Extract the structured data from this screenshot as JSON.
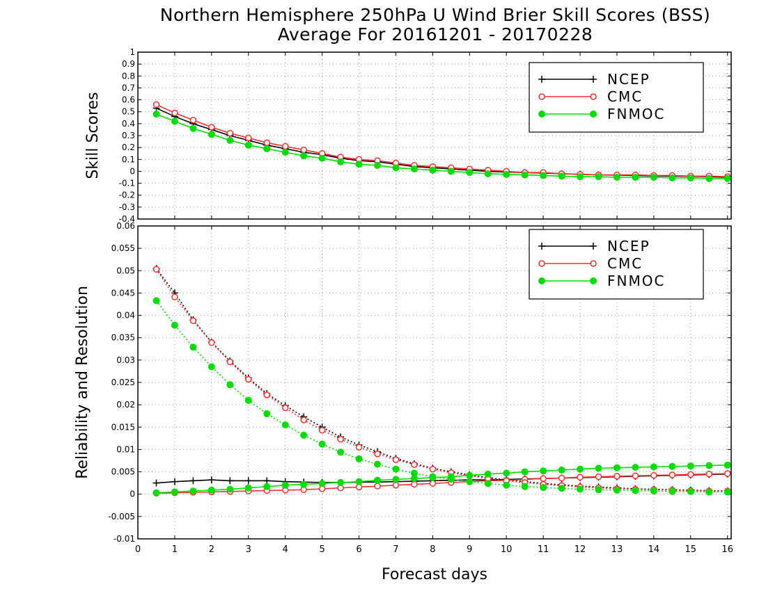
{
  "figure": {
    "title_line1": "Northern Hemisphere 250hPa U Wind Brier Skill Scores (BSS)",
    "title_line2": "Average For 20161201 - 20170228"
  },
  "chart_data": [
    {
      "id": "top",
      "type": "line",
      "ylabel": "Skill Scores",
      "xlabel": "",
      "xlim": [
        0,
        16.1
      ],
      "ylim": [
        -0.4,
        1
      ],
      "yticks": [
        -0.4,
        -0.3,
        -0.2,
        -0.1,
        0,
        0.1,
        0.2,
        0.3,
        0.4,
        0.5,
        0.6,
        0.7,
        0.8,
        0.9,
        1
      ],
      "ytick_labels": [
        "-0.4",
        "-0.3",
        "-0.2",
        "-0.1",
        "0",
        "0.1",
        "0.2",
        "0.3",
        "0.4",
        "0.5",
        "0.6",
        "0.7",
        "0.8",
        "0.9",
        "1"
      ],
      "grid": true,
      "legend": "top-right",
      "x": [
        0.5,
        1,
        1.5,
        2,
        2.5,
        3,
        3.5,
        4,
        4.5,
        5,
        5.5,
        6,
        6.5,
        7,
        7.5,
        8,
        8.5,
        9,
        9.5,
        10,
        10.5,
        11,
        11.5,
        12,
        12.5,
        13,
        13.5,
        14,
        14.5,
        15,
        15.5,
        16
      ],
      "series": [
        {
          "name": "NCEP",
          "color": "#000000",
          "marker": "plus",
          "style": "solid",
          "values": [
            0.53,
            0.46,
            0.4,
            0.35,
            0.3,
            0.26,
            0.22,
            0.19,
            0.16,
            0.14,
            0.11,
            0.09,
            0.08,
            0.06,
            0.04,
            0.03,
            0.02,
            0.01,
            0.0,
            -0.005,
            -0.01,
            -0.015,
            -0.02,
            -0.025,
            -0.03,
            -0.032,
            -0.035,
            -0.038,
            -0.04,
            -0.042,
            -0.045,
            -0.05
          ]
        },
        {
          "name": "CMC",
          "color": "#ff3030",
          "marker": "open-circle",
          "style": "solid",
          "values": [
            0.56,
            0.49,
            0.43,
            0.37,
            0.32,
            0.28,
            0.24,
            0.21,
            0.18,
            0.15,
            0.12,
            0.1,
            0.09,
            0.07,
            0.05,
            0.04,
            0.03,
            0.02,
            0.01,
            0.0,
            -0.01,
            -0.01,
            -0.02,
            -0.025,
            -0.03,
            -0.03,
            -0.03,
            -0.035,
            -0.035,
            -0.04,
            -0.04,
            -0.045
          ]
        },
        {
          "name": "FNMOC",
          "color": "#00dd00",
          "marker": "filled-circle",
          "style": "solid",
          "values": [
            0.48,
            0.42,
            0.36,
            0.31,
            0.26,
            0.22,
            0.19,
            0.16,
            0.13,
            0.11,
            0.08,
            0.06,
            0.05,
            0.03,
            0.02,
            0.01,
            0.0,
            -0.01,
            -0.02,
            -0.025,
            -0.03,
            -0.035,
            -0.04,
            -0.045,
            -0.045,
            -0.05,
            -0.05,
            -0.05,
            -0.055,
            -0.055,
            -0.06,
            -0.06
          ]
        }
      ]
    },
    {
      "id": "bottom",
      "type": "line",
      "ylabel": "Reliability and Resolution",
      "xlabel": "Forecast days",
      "xlim": [
        0,
        16.1
      ],
      "xticks": [
        0,
        1,
        2,
        3,
        4,
        5,
        6,
        7,
        8,
        9,
        10,
        11,
        12,
        13,
        14,
        15,
        16
      ],
      "xtick_labels": [
        "0",
        "1",
        "2",
        "3",
        "4",
        "5",
        "6",
        "7",
        "8",
        "9",
        "10",
        "11",
        "12",
        "13",
        "14",
        "15",
        "16"
      ],
      "ylim": [
        -0.01,
        0.06
      ],
      "yticks": [
        -0.01,
        -0.005,
        0,
        0.005,
        0.01,
        0.015,
        0.02,
        0.025,
        0.03,
        0.035,
        0.04,
        0.045,
        0.05,
        0.055,
        0.06
      ],
      "ytick_labels": [
        "-0.01",
        "-0.005",
        "0",
        "0.005",
        "0.01",
        "0.015",
        "0.02",
        "0.025",
        "0.03",
        "0.035",
        "0.04",
        "0.045",
        "0.05",
        "0.055",
        "0.06"
      ],
      "grid": true,
      "legend": "top-right",
      "x": [
        0.5,
        1,
        1.5,
        2,
        2.5,
        3,
        3.5,
        4,
        4.5,
        5,
        5.5,
        6,
        6.5,
        7,
        7.5,
        8,
        8.5,
        9,
        9.5,
        10,
        10.5,
        11,
        11.5,
        12,
        12.5,
        13,
        13.5,
        14,
        14.5,
        15,
        15.5,
        16
      ],
      "series": [
        {
          "name": "NCEP",
          "color": "#000000",
          "marker": "plus",
          "style": "solid",
          "values": [
            0.0025,
            0.0028,
            0.003,
            0.0032,
            0.003,
            0.003,
            0.003,
            0.0028,
            0.0027,
            0.0026,
            0.0026,
            0.0027,
            0.0027,
            0.0028,
            0.0029,
            0.003,
            0.0031,
            0.0032,
            0.0032,
            0.0033,
            0.0034,
            0.0035,
            0.0036,
            0.0037,
            0.0038,
            0.0039,
            0.004,
            0.0041,
            0.0042,
            0.0043,
            0.0044,
            0.0045
          ]
        },
        {
          "name": "NCEP",
          "color": "#000000",
          "marker": "plus",
          "style": "dotted",
          "values": [
            0.0505,
            0.045,
            0.039,
            0.034,
            0.0298,
            0.026,
            0.0225,
            0.0198,
            0.0173,
            0.015,
            0.0128,
            0.011,
            0.0095,
            0.008,
            0.0068,
            0.0058,
            0.005,
            0.0043,
            0.0037,
            0.0032,
            0.0028,
            0.0024,
            0.0021,
            0.0018,
            0.0016,
            0.0014,
            0.0012,
            0.0011,
            0.001,
            0.0009,
            0.0008,
            0.0007
          ]
        },
        {
          "name": "CMC",
          "color": "#ff3030",
          "marker": "open-circle",
          "style": "solid",
          "values": [
            0.0002,
            0.0003,
            0.0004,
            0.0005,
            0.0006,
            0.0007,
            0.0008,
            0.0009,
            0.001,
            0.0012,
            0.0014,
            0.0016,
            0.0018,
            0.002,
            0.0022,
            0.0024,
            0.0026,
            0.0028,
            0.003,
            0.0031,
            0.0033,
            0.0035,
            0.0036,
            0.0038,
            0.0039,
            0.004,
            0.0041,
            0.0042,
            0.0043,
            0.0044,
            0.0045,
            0.0046
          ]
        },
        {
          "name": "CMC",
          "color": "#ff3030",
          "marker": "open-circle",
          "style": "dotted",
          "values": [
            0.0503,
            0.0441,
            0.0388,
            0.0339,
            0.0296,
            0.0257,
            0.0222,
            0.0193,
            0.0166,
            0.0143,
            0.0123,
            0.0105,
            0.009,
            0.0077,
            0.0066,
            0.0056,
            0.0048,
            0.0041,
            0.0035,
            0.003,
            0.0026,
            0.0022,
            0.0019,
            0.0016,
            0.0014,
            0.0012,
            0.0011,
            0.001,
            0.0009,
            0.0008,
            0.0007,
            0.0007
          ]
        },
        {
          "name": "FNMOC",
          "color": "#00dd00",
          "marker": "filled-circle",
          "style": "solid",
          "values": [
            0.0003,
            0.0005,
            0.0007,
            0.0009,
            0.0011,
            0.0014,
            0.0017,
            0.002,
            0.0022,
            0.0024,
            0.0026,
            0.0028,
            0.0031,
            0.0033,
            0.0035,
            0.0037,
            0.0039,
            0.0042,
            0.0045,
            0.0047,
            0.005,
            0.0052,
            0.0054,
            0.0056,
            0.0058,
            0.0059,
            0.006,
            0.0061,
            0.0062,
            0.0063,
            0.0064,
            0.0065
          ]
        },
        {
          "name": "FNMOC",
          "color": "#00dd00",
          "marker": "filled-circle",
          "style": "dotted",
          "values": [
            0.0433,
            0.0378,
            0.0329,
            0.0285,
            0.0245,
            0.021,
            0.018,
            0.0155,
            0.0132,
            0.0112,
            0.0094,
            0.0079,
            0.0067,
            0.0056,
            0.0047,
            0.0039,
            0.0033,
            0.0028,
            0.0024,
            0.002,
            0.0017,
            0.0015,
            0.0013,
            0.0011,
            0.001,
            0.0009,
            0.0008,
            0.0007,
            0.0006,
            0.0006,
            0.0005,
            0.0005
          ]
        }
      ]
    }
  ]
}
